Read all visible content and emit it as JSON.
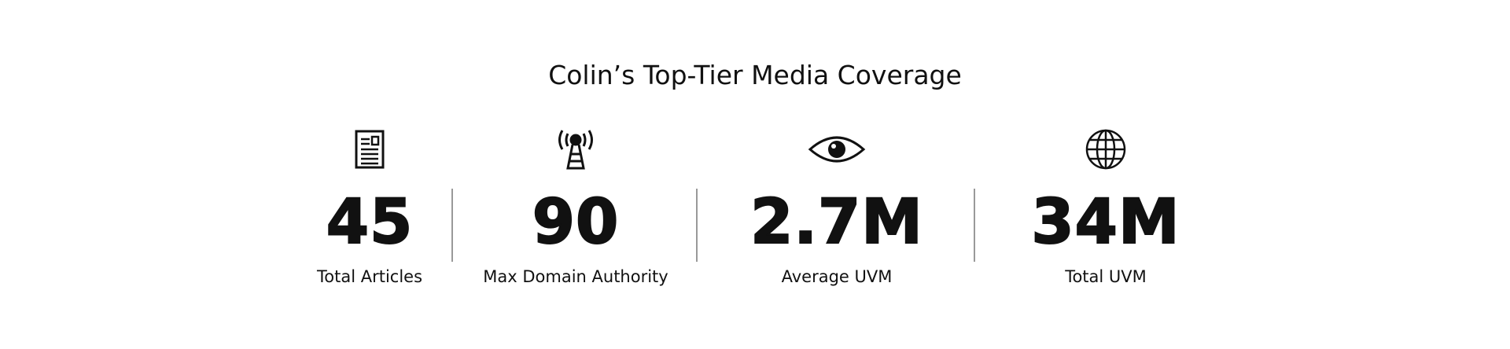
{
  "header": {
    "title": "Colin’s Top-Tier Media Coverage"
  },
  "stats": [
    {
      "value": "45",
      "label": "Total Articles"
    },
    {
      "value": "90",
      "label": "Max Domain Authority"
    },
    {
      "value": "2.7M",
      "label": "Average UVM"
    },
    {
      "value": "34M",
      "label": "Total UVM"
    }
  ]
}
